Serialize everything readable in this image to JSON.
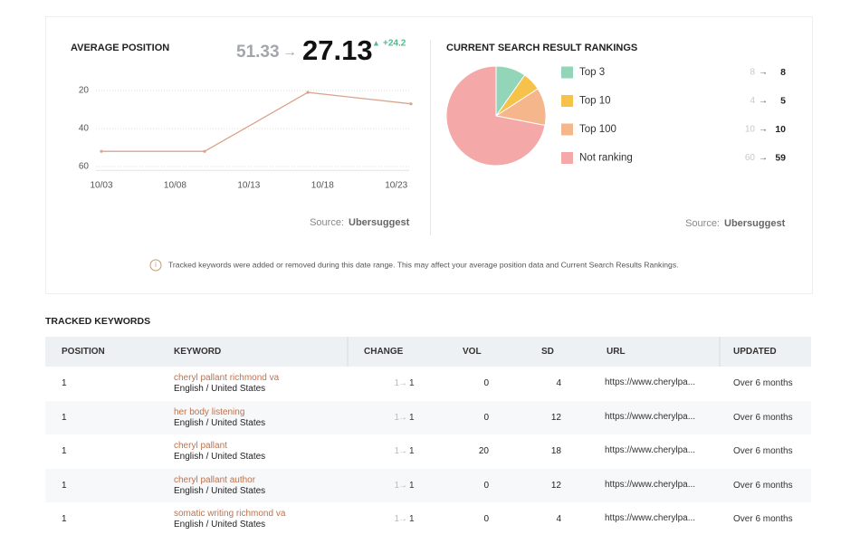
{
  "chart_data": [
    {
      "type": "line",
      "title": "AVERAGE POSITION",
      "summary": {
        "from": 51.33,
        "to": 27.13,
        "change": {
          "value": 24.2,
          "label": "+24.2"
        }
      },
      "x": [
        "10/03",
        "10/10",
        "10/17",
        "10/24"
      ],
      "values": [
        52,
        52,
        21,
        27
      ],
      "color": "#d9a48f",
      "xlim": [
        "10/03",
        "10/24"
      ],
      "xticks": [
        "10/03",
        "10/08",
        "10/13",
        "10/18",
        "10/23"
      ],
      "ylim": [
        15,
        62
      ],
      "yticks": [
        20,
        40,
        60
      ],
      "y_inverted": true,
      "grid": true,
      "source_label": "Source:",
      "source": "Ubersuggest"
    },
    {
      "type": "pie",
      "title": "CURRENT SEARCH RESULT RANKINGS",
      "categories": [
        "Top 3",
        "Top 10",
        "Top 100",
        "Not ranking"
      ],
      "values": [
        8,
        5,
        10,
        59
      ],
      "previous_values": [
        8,
        4,
        10,
        60
      ],
      "colors": [
        "#93d5b8",
        "#f6c24a",
        "#f4b68a",
        "#f4a8a8"
      ],
      "source_label": "Source:",
      "source": "Ubersuggest"
    }
  ],
  "notice": "Tracked keywords were added or removed during this date range. This may affect your average position data and Current Search Results Rankings.",
  "table": {
    "title": "TRACKED KEYWORDS",
    "columns": [
      "POSITION",
      "KEYWORD",
      "CHANGE",
      "VOL",
      "SD",
      "URL",
      "UPDATED"
    ],
    "rows": [
      {
        "position": 1,
        "keyword": "cheryl pallant richmond va",
        "language": "English / United States",
        "change_from": 1,
        "change_to": 1,
        "vol": 0,
        "sd": 4,
        "url": "https://www.cherylpa...",
        "updated": "Over 6 months"
      },
      {
        "position": 1,
        "keyword": "her body listening",
        "language": "English / United States",
        "change_from": 1,
        "change_to": 1,
        "vol": 0,
        "sd": 12,
        "url": "https://www.cherylpa...",
        "updated": "Over 6 months"
      },
      {
        "position": 1,
        "keyword": "cheryl pallant",
        "language": "English / United States",
        "change_from": 1,
        "change_to": 1,
        "vol": 20,
        "sd": 18,
        "url": "https://www.cherylpa...",
        "updated": "Over 6 months"
      },
      {
        "position": 1,
        "keyword": "cheryl pallant author",
        "language": "English / United States",
        "change_from": 1,
        "change_to": 1,
        "vol": 0,
        "sd": 12,
        "url": "https://www.cherylpa...",
        "updated": "Over 6 months"
      },
      {
        "position": 1,
        "keyword": "somatic writing richmond va",
        "language": "English / United States",
        "change_from": 1,
        "change_to": 1,
        "vol": 0,
        "sd": 4,
        "url": "https://www.cherylpa...",
        "updated": "Over 6 months"
      }
    ]
  }
}
